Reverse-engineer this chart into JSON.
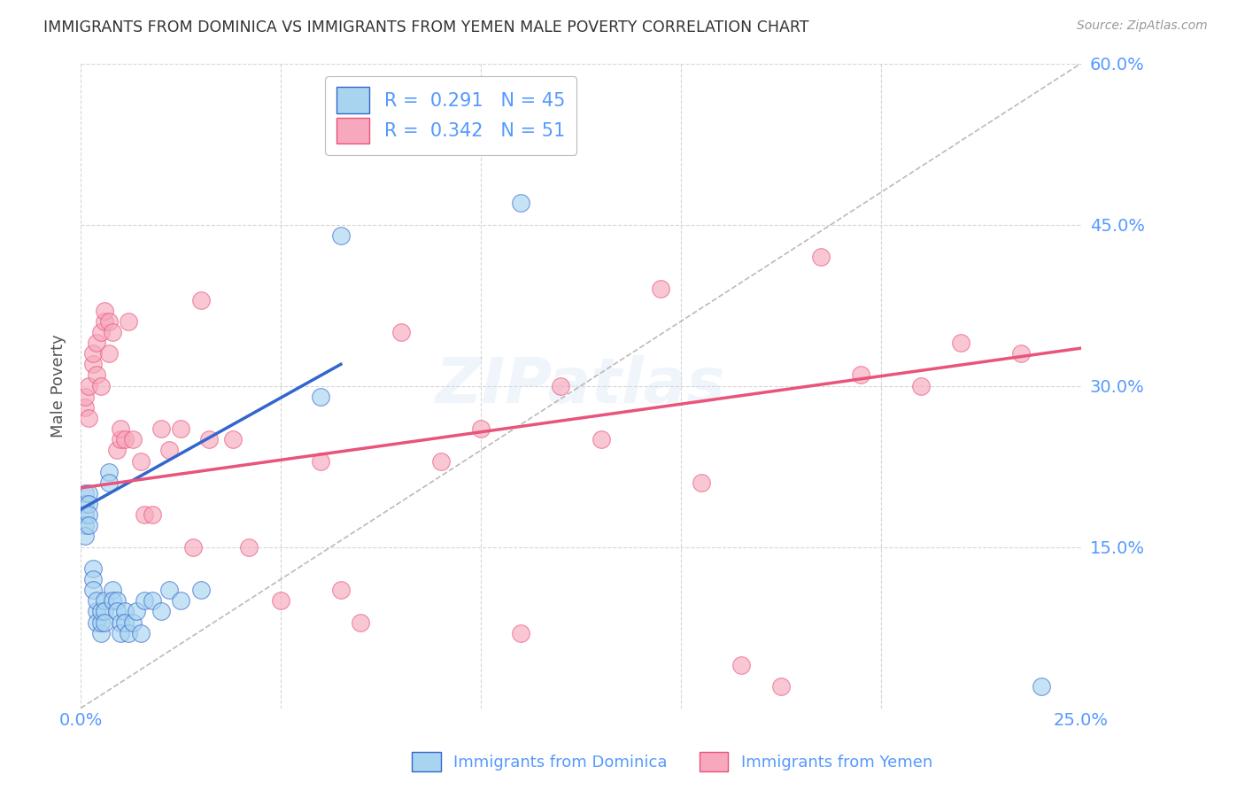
{
  "title": "IMMIGRANTS FROM DOMINICA VS IMMIGRANTS FROM YEMEN MALE POVERTY CORRELATION CHART",
  "source": "Source: ZipAtlas.com",
  "ylabel_label": "Male Poverty",
  "x_min": 0.0,
  "x_max": 0.25,
  "y_min": 0.0,
  "y_max": 0.6,
  "x_ticks": [
    0.0,
    0.05,
    0.1,
    0.15,
    0.2,
    0.25
  ],
  "x_tick_labels": [
    "0.0%",
    "",
    "",
    "",
    "",
    "25.0%"
  ],
  "y_ticks": [
    0.0,
    0.15,
    0.3,
    0.45,
    0.6
  ],
  "y_tick_labels": [
    "",
    "15.0%",
    "30.0%",
    "45.0%",
    "60.0%"
  ],
  "dominica_color": "#a8d4f0",
  "yemen_color": "#f7a8bc",
  "trendline_dominica_color": "#3366cc",
  "trendline_yemen_color": "#e8547a",
  "diagonal_color": "#aaaaaa",
  "background_color": "#ffffff",
  "grid_color": "#cccccc",
  "axis_label_color": "#5599ff",
  "title_color": "#333333",
  "dominica_x": [
    0.001,
    0.001,
    0.001,
    0.001,
    0.001,
    0.002,
    0.002,
    0.002,
    0.002,
    0.003,
    0.003,
    0.003,
    0.004,
    0.004,
    0.004,
    0.005,
    0.005,
    0.005,
    0.006,
    0.006,
    0.006,
    0.007,
    0.007,
    0.008,
    0.008,
    0.009,
    0.009,
    0.01,
    0.01,
    0.011,
    0.011,
    0.012,
    0.013,
    0.014,
    0.015,
    0.016,
    0.018,
    0.02,
    0.022,
    0.025,
    0.03,
    0.06,
    0.065,
    0.11,
    0.24
  ],
  "dominica_y": [
    0.2,
    0.19,
    0.18,
    0.17,
    0.16,
    0.2,
    0.19,
    0.18,
    0.17,
    0.13,
    0.12,
    0.11,
    0.09,
    0.08,
    0.1,
    0.07,
    0.08,
    0.09,
    0.1,
    0.09,
    0.08,
    0.22,
    0.21,
    0.11,
    0.1,
    0.1,
    0.09,
    0.08,
    0.07,
    0.09,
    0.08,
    0.07,
    0.08,
    0.09,
    0.07,
    0.1,
    0.1,
    0.09,
    0.11,
    0.1,
    0.11,
    0.29,
    0.44,
    0.47,
    0.02
  ],
  "yemen_x": [
    0.001,
    0.001,
    0.002,
    0.002,
    0.003,
    0.003,
    0.004,
    0.004,
    0.005,
    0.005,
    0.006,
    0.006,
    0.007,
    0.007,
    0.008,
    0.009,
    0.01,
    0.01,
    0.011,
    0.012,
    0.013,
    0.015,
    0.016,
    0.018,
    0.02,
    0.022,
    0.025,
    0.028,
    0.03,
    0.032,
    0.038,
    0.042,
    0.05,
    0.06,
    0.065,
    0.07,
    0.08,
    0.09,
    0.1,
    0.11,
    0.12,
    0.13,
    0.145,
    0.155,
    0.165,
    0.175,
    0.185,
    0.195,
    0.21,
    0.22,
    0.235
  ],
  "yemen_y": [
    0.28,
    0.29,
    0.27,
    0.3,
    0.32,
    0.33,
    0.31,
    0.34,
    0.3,
    0.35,
    0.36,
    0.37,
    0.33,
    0.36,
    0.35,
    0.24,
    0.25,
    0.26,
    0.25,
    0.36,
    0.25,
    0.23,
    0.18,
    0.18,
    0.26,
    0.24,
    0.26,
    0.15,
    0.38,
    0.25,
    0.25,
    0.15,
    0.1,
    0.23,
    0.11,
    0.08,
    0.35,
    0.23,
    0.26,
    0.07,
    0.3,
    0.25,
    0.39,
    0.21,
    0.04,
    0.02,
    0.42,
    0.31,
    0.3,
    0.34,
    0.33
  ],
  "dom_trend_x": [
    0.0,
    0.065
  ],
  "dom_trend_y": [
    0.185,
    0.32
  ],
  "yem_trend_x": [
    0.0,
    0.25
  ],
  "yem_trend_y": [
    0.205,
    0.335
  ]
}
